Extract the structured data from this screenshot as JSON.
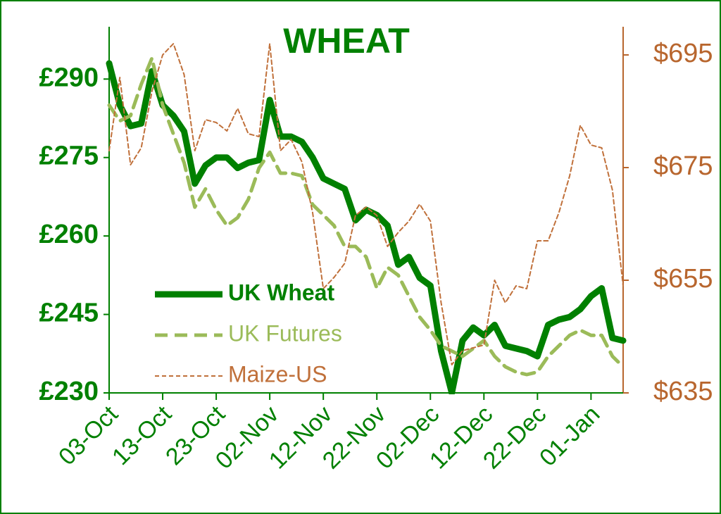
{
  "chart_data": {
    "type": "line",
    "title": "WHEAT",
    "categories": [
      "03-Oct",
      null,
      null,
      null,
      null,
      "13-Oct",
      null,
      null,
      null,
      null,
      "23-Oct",
      null,
      null,
      null,
      null,
      "02-Nov",
      null,
      null,
      null,
      null,
      "12-Nov",
      null,
      null,
      null,
      null,
      "22-Nov",
      null,
      null,
      null,
      null,
      "02-Dec",
      null,
      null,
      null,
      null,
      "12-Dec",
      null,
      null,
      null,
      null,
      "22-Dec",
      null,
      null,
      null,
      null,
      "01-Jan",
      null,
      null,
      null
    ],
    "series": [
      {
        "name": "UK Wheat",
        "color": "#008000",
        "axis": "y",
        "values": [
          293,
          285,
          281,
          281.5,
          291.5,
          285,
          283,
          280,
          270,
          273.5,
          275,
          275,
          273,
          274,
          274.5,
          286,
          279,
          279,
          278,
          275,
          271,
          270,
          269,
          263,
          265,
          264,
          262,
          254.5,
          256,
          252,
          250.5,
          238,
          230,
          240,
          242.5,
          241,
          243,
          239,
          238.5,
          238,
          237,
          243,
          244,
          244.5,
          246,
          248.5,
          250,
          240.5,
          240
        ]
      },
      {
        "name": "UK Futures",
        "color": "#9bbb59",
        "axis": "y",
        "values": [
          285,
          282,
          283,
          289,
          294,
          285,
          279.5,
          274,
          265.5,
          269,
          265,
          262,
          263.5,
          267,
          273,
          276,
          272,
          272,
          271.5,
          266,
          264,
          262,
          258,
          258,
          256,
          250,
          254,
          252.5,
          248.5,
          244.5,
          242,
          239,
          238,
          237,
          238.5,
          240,
          237,
          235,
          234,
          233.5,
          234,
          237,
          239,
          241,
          242,
          241,
          241,
          237,
          235
        ]
      },
      {
        "name": "Maize-US",
        "color": "#c0703a",
        "axis": "y2",
        "values": [
          678,
          691,
          675.5,
          678.5,
          688.5,
          695,
          697,
          691.5,
          678,
          683.5,
          683,
          681.5,
          685.5,
          681,
          680.5,
          697,
          678,
          680,
          676,
          667,
          653.5,
          655.5,
          658,
          666.5,
          668,
          666.5,
          661,
          663.5,
          665.5,
          668.5,
          665.5,
          651,
          640,
          642.5,
          643,
          643.5,
          655,
          651,
          654,
          653.5,
          662,
          662,
          667,
          673.5,
          682.5,
          679,
          678.5,
          671,
          654
        ]
      }
    ],
    "ylim": [
      230,
      300
    ],
    "yticks": [
      {
        "value": 230,
        "label": "£230"
      },
      {
        "value": 245,
        "label": "£245"
      },
      {
        "value": 260,
        "label": "£260"
      },
      {
        "value": 275,
        "label": "£275"
      },
      {
        "value": 290,
        "label": "£290"
      }
    ],
    "y2lim": [
      635,
      700
    ],
    "y2ticks": [
      {
        "value": 635,
        "label": "$635"
      },
      {
        "value": 655,
        "label": "$655"
      },
      {
        "value": 675,
        "label": "$675"
      },
      {
        "value": 695,
        "label": "$695"
      }
    ],
    "grid": false,
    "legend": "lower-left"
  }
}
